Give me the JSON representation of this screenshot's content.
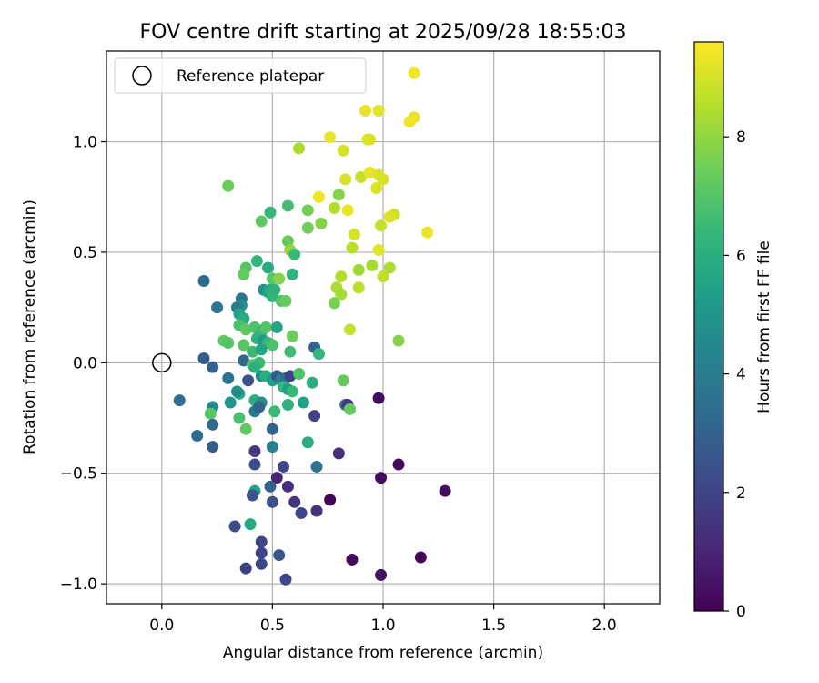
{
  "chart_data": {
    "type": "scatter",
    "title": "FOV centre drift starting at 2025/09/28 18:55:03",
    "xlabel": "Angular distance from reference (arcmin)",
    "ylabel": "Rotation from reference (arcmin)",
    "xlim": [
      -0.25,
      2.25
    ],
    "ylim": [
      -1.09,
      1.41
    ],
    "xticks": [
      0.0,
      0.5,
      1.0,
      1.5,
      2.0
    ],
    "xtick_labels": [
      "0.0",
      "0.5",
      "1.0",
      "1.5",
      "2.0"
    ],
    "yticks": [
      -1.0,
      -0.5,
      0.0,
      0.5,
      1.0
    ],
    "ytick_labels": [
      "−1.0",
      "−0.5",
      "0.0",
      "0.5",
      "1.0"
    ],
    "grid": true,
    "legend": {
      "placement": "top-left",
      "label": "Reference platepar"
    },
    "reference_point": {
      "x": 0.0,
      "y": 0.0
    },
    "colorbar": {
      "label": "Hours from first FF file",
      "min": 0,
      "max": 9.6,
      "ticks": [
        0,
        2,
        4,
        6,
        8
      ],
      "tick_labels": [
        "0",
        "2",
        "4",
        "6",
        "8"
      ],
      "colormap": "viridis",
      "stops": [
        "#440154",
        "#482878",
        "#3e4989",
        "#31688e",
        "#26828e",
        "#1f9e89",
        "#35b779",
        "#6ece58",
        "#b5de2b",
        "#fde725"
      ]
    },
    "points": [
      [
        1.14,
        1.31,
        9.4
      ],
      [
        1.14,
        1.11,
        9.3
      ],
      [
        1.12,
        1.09,
        9.4
      ],
      [
        0.92,
        1.14,
        9.3
      ],
      [
        0.98,
        1.14,
        9.2
      ],
      [
        0.62,
        0.97,
        8.4
      ],
      [
        0.76,
        1.02,
        9.3
      ],
      [
        0.82,
        0.96,
        9.0
      ],
      [
        0.93,
        1.01,
        9.2
      ],
      [
        0.94,
        1.01,
        9.1
      ],
      [
        0.3,
        0.8,
        7.4
      ],
      [
        0.83,
        0.83,
        9.0
      ],
      [
        0.9,
        0.84,
        8.8
      ],
      [
        0.94,
        0.86,
        9.3
      ],
      [
        0.98,
        0.85,
        9.1
      ],
      [
        1.0,
        0.83,
        9.0
      ],
      [
        0.97,
        0.79,
        9.1
      ],
      [
        0.66,
        0.69,
        7.5
      ],
      [
        0.71,
        0.75,
        9.4
      ],
      [
        0.8,
        0.76,
        7.8
      ],
      [
        0.57,
        0.71,
        6.7
      ],
      [
        0.49,
        0.68,
        6.3
      ],
      [
        0.45,
        0.64,
        7.2
      ],
      [
        0.78,
        0.7,
        8.5
      ],
      [
        0.84,
        0.69,
        9.3
      ],
      [
        1.05,
        0.67,
        8.9
      ],
      [
        1.03,
        0.66,
        9.1
      ],
      [
        0.66,
        0.61,
        7.5
      ],
      [
        0.72,
        0.63,
        7.8
      ],
      [
        0.99,
        0.62,
        8.8
      ],
      [
        1.2,
        0.59,
        9.3
      ],
      [
        0.87,
        0.58,
        9.0
      ],
      [
        0.57,
        0.55,
        7.3
      ],
      [
        0.58,
        0.51,
        8.0
      ],
      [
        0.6,
        0.49,
        6.5
      ],
      [
        0.86,
        0.52,
        8.6
      ],
      [
        0.98,
        0.51,
        9.2
      ],
      [
        0.38,
        0.43,
        7.0
      ],
      [
        0.43,
        0.46,
        6.3
      ],
      [
        0.48,
        0.43,
        5.8
      ],
      [
        0.5,
        0.38,
        7.1
      ],
      [
        0.37,
        0.4,
        7.3
      ],
      [
        0.53,
        0.38,
        7.8
      ],
      [
        0.59,
        0.4,
        6.2
      ],
      [
        0.81,
        0.39,
        8.5
      ],
      [
        0.89,
        0.42,
        8.2
      ],
      [
        0.95,
        0.44,
        8.3
      ],
      [
        1.0,
        0.39,
        8.7
      ],
      [
        1.03,
        0.43,
        8.4
      ],
      [
        0.19,
        0.37,
        3.3
      ],
      [
        0.46,
        0.33,
        4.9
      ],
      [
        0.48,
        0.32,
        5.4
      ],
      [
        0.49,
        0.33,
        5.8
      ],
      [
        0.5,
        0.3,
        6.3
      ],
      [
        0.51,
        0.33,
        6.2
      ],
      [
        0.54,
        0.28,
        7.0
      ],
      [
        0.56,
        0.28,
        7.3
      ],
      [
        0.36,
        0.29,
        3.7
      ],
      [
        0.36,
        0.26,
        4.8
      ],
      [
        0.34,
        0.25,
        4.0
      ],
      [
        0.25,
        0.25,
        3.8
      ],
      [
        0.78,
        0.27,
        7.6
      ],
      [
        0.79,
        0.34,
        8.4
      ],
      [
        0.81,
        0.31,
        8.3
      ],
      [
        0.89,
        0.34,
        8.6
      ],
      [
        0.35,
        0.22,
        5.5
      ],
      [
        0.37,
        0.2,
        5.9
      ],
      [
        0.35,
        0.17,
        6.8
      ],
      [
        0.38,
        0.15,
        7.2
      ],
      [
        0.42,
        0.16,
        6.9
      ],
      [
        0.45,
        0.14,
        6.5
      ],
      [
        0.47,
        0.16,
        7.0
      ],
      [
        0.52,
        0.16,
        5.6
      ],
      [
        0.43,
        0.11,
        6.2
      ],
      [
        0.46,
        0.1,
        5.1
      ],
      [
        0.48,
        0.09,
        6.4
      ],
      [
        0.5,
        0.08,
        6.8
      ],
      [
        0.59,
        0.12,
        7.4
      ],
      [
        0.28,
        0.1,
        7.2
      ],
      [
        0.3,
        0.09,
        7.0
      ],
      [
        0.37,
        0.08,
        7.1
      ],
      [
        0.41,
        0.05,
        6.5
      ],
      [
        0.45,
        0.06,
        5.6
      ],
      [
        0.58,
        0.05,
        6.6
      ],
      [
        0.69,
        0.07,
        3.0
      ],
      [
        0.71,
        0.04,
        6.3
      ],
      [
        0.85,
        0.15,
        8.8
      ],
      [
        1.07,
        0.1,
        7.8
      ],
      [
        0.37,
        0.01,
        3.2
      ],
      [
        0.41,
        -0.01,
        7.1
      ],
      [
        0.44,
        0.0,
        6.5
      ],
      [
        0.42,
        -0.02,
        6.0
      ],
      [
        0.19,
        0.02,
        2.8
      ],
      [
        0.23,
        -0.02,
        2.9
      ],
      [
        0.3,
        -0.07,
        3.6
      ],
      [
        0.39,
        -0.08,
        2.5
      ],
      [
        0.45,
        -0.06,
        4.8
      ],
      [
        0.47,
        -0.06,
        6.0
      ],
      [
        0.5,
        -0.08,
        5.4
      ],
      [
        0.52,
        -0.06,
        2.8
      ],
      [
        0.54,
        -0.08,
        4.2
      ],
      [
        0.56,
        -0.07,
        3.6
      ],
      [
        0.58,
        -0.06,
        2.0
      ],
      [
        0.62,
        -0.05,
        6.9
      ],
      [
        0.68,
        -0.09,
        5.9
      ],
      [
        0.82,
        -0.08,
        7.3
      ],
      [
        0.35,
        -0.14,
        5.7
      ],
      [
        0.42,
        -0.17,
        6.0
      ],
      [
        0.45,
        -0.18,
        4.8
      ],
      [
        0.55,
        -0.11,
        6.3
      ],
      [
        0.57,
        -0.12,
        5.4
      ],
      [
        0.59,
        -0.13,
        6.5
      ],
      [
        0.57,
        -0.19,
        6.1
      ],
      [
        0.64,
        -0.18,
        5.5
      ],
      [
        0.08,
        -0.17,
        3.4
      ],
      [
        0.23,
        -0.2,
        4.5
      ],
      [
        0.22,
        -0.23,
        7.1
      ],
      [
        0.31,
        -0.18,
        5.0
      ],
      [
        0.34,
        -0.13,
        4.7
      ],
      [
        0.42,
        -0.22,
        3.9
      ],
      [
        0.44,
        -0.2,
        3.1
      ],
      [
        0.51,
        -0.22,
        6.5
      ],
      [
        0.69,
        -0.24,
        1.9
      ],
      [
        0.83,
        -0.19,
        3.4
      ],
      [
        0.84,
        -0.19,
        1.6
      ],
      [
        0.85,
        -0.21,
        7.3
      ],
      [
        0.98,
        -0.16,
        0.3
      ],
      [
        0.35,
        -0.25,
        6.8
      ],
      [
        0.23,
        -0.28,
        3.3
      ],
      [
        0.38,
        -0.3,
        7.2
      ],
      [
        0.5,
        -0.3,
        3.1
      ],
      [
        0.16,
        -0.33,
        3.4
      ],
      [
        0.23,
        -0.38,
        2.8
      ],
      [
        0.42,
        -0.4,
        1.6
      ],
      [
        0.5,
        -0.38,
        4.2
      ],
      [
        0.66,
        -0.36,
        5.9
      ],
      [
        0.8,
        -0.41,
        1.3
      ],
      [
        0.42,
        -0.46,
        2.2
      ],
      [
        0.55,
        -0.47,
        2.1
      ],
      [
        0.7,
        -0.47,
        3.6
      ],
      [
        1.07,
        -0.46,
        0.2
      ],
      [
        0.52,
        -0.52,
        1.0
      ],
      [
        0.57,
        -0.56,
        1.3
      ],
      [
        0.49,
        -0.56,
        3.0
      ],
      [
        0.42,
        -0.58,
        5.5
      ],
      [
        0.41,
        -0.6,
        2.5
      ],
      [
        0.5,
        -0.63,
        2.4
      ],
      [
        0.6,
        -0.63,
        1.5
      ],
      [
        0.63,
        -0.68,
        2.0
      ],
      [
        0.7,
        -0.67,
        1.4
      ],
      [
        0.76,
        -0.62,
        0.1
      ],
      [
        0.99,
        -0.52,
        0.3
      ],
      [
        1.28,
        -0.58,
        0.3
      ],
      [
        0.33,
        -0.74,
        2.2
      ],
      [
        0.4,
        -0.73,
        5.8
      ],
      [
        0.45,
        -0.81,
        2.0
      ],
      [
        0.45,
        -0.86,
        2.0
      ],
      [
        0.45,
        -0.91,
        2.1
      ],
      [
        0.38,
        -0.93,
        1.8
      ],
      [
        0.53,
        -0.87,
        2.6
      ],
      [
        0.56,
        -0.98,
        2.0
      ],
      [
        0.86,
        -0.89,
        0.2
      ],
      [
        1.17,
        -0.88,
        0.2
      ],
      [
        0.99,
        -0.96,
        0.4
      ]
    ]
  }
}
